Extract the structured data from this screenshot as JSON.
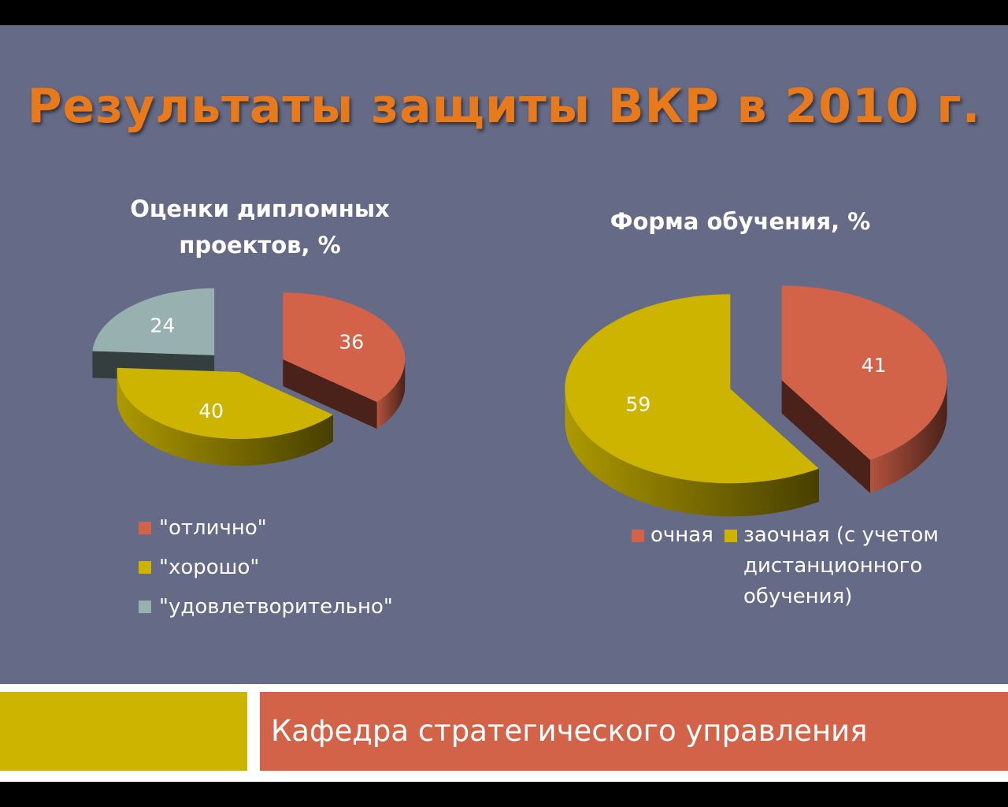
{
  "slide": {
    "title": "Результаты защиты ВКР в 2010 г.",
    "footer_text": "Кафедра стратегического управления"
  },
  "chart_data": [
    {
      "type": "pie",
      "title": "Оценки дипломных проектов, %",
      "title_lines": [
        "Оценки дипломных",
        "проектов, %"
      ],
      "categories": [
        "\"отлично\"",
        "\"хорошо\"",
        "\"удовлетворительно\""
      ],
      "values": [
        36,
        40,
        24
      ],
      "colors": [
        "#d26248",
        "#ccb400",
        "#98b1b0"
      ],
      "legend_position": "bottom",
      "exploded": true,
      "3d": true
    },
    {
      "type": "pie",
      "title": "Форма обучения, %",
      "categories": [
        "очная",
        "заочная (с учетом дистанционного обучения)"
      ],
      "legend_lines": [
        "заочная (с учетом",
        "дистанционного",
        "обучения)"
      ],
      "values": [
        41,
        59
      ],
      "colors": [
        "#d26248",
        "#ccb400"
      ],
      "legend_position": "bottom",
      "exploded": true,
      "3d": true
    }
  ]
}
